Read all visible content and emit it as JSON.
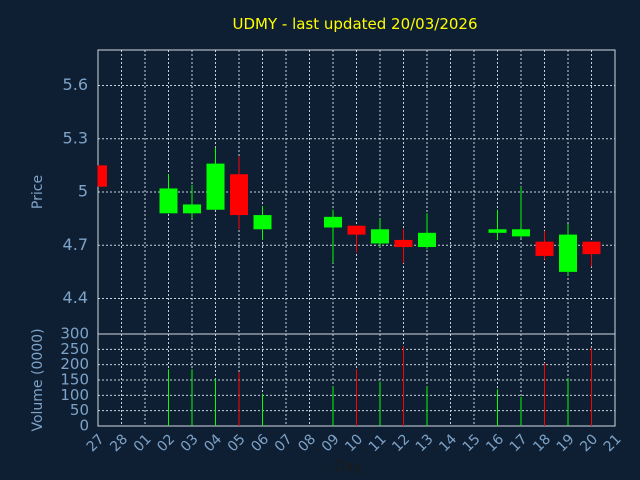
{
  "chart_data": {
    "type": "candlestick",
    "title": "UDMY - last updated 20/03/2026",
    "price_panel": {
      "ylabel": "Price",
      "ylim": [
        4.2,
        5.8
      ],
      "yticks": [
        "4.4",
        "4.7",
        "5",
        "5.3",
        "5.6"
      ],
      "ytick_values": [
        4.4,
        4.7,
        5.0,
        5.3,
        5.6
      ]
    },
    "volume_panel": {
      "ylabel": "Volume (0000)",
      "ylim": [
        0,
        300
      ],
      "yticks": [
        "0",
        "50",
        "100",
        "150",
        "200",
        "250",
        "300"
      ],
      "ytick_values": [
        0,
        50,
        100,
        150,
        200,
        250,
        300
      ]
    },
    "xlabel": "Day",
    "x_ticks": [
      "27",
      "28",
      "01",
      "02",
      "03",
      "04",
      "05",
      "06",
      "07",
      "08",
      "09",
      "10",
      "11",
      "12",
      "13",
      "14",
      "15",
      "16",
      "17",
      "18",
      "19",
      "20",
      "21"
    ],
    "grid": true,
    "colors": {
      "up": "#00ff00",
      "down": "#ff0000",
      "background": "#0f1f33",
      "title": "#ffff00",
      "axis_text": "#7ea3c8"
    },
    "candles": [
      {
        "day": "27",
        "open": 5.15,
        "high": 5.15,
        "low": 5.03,
        "close": 5.03,
        "volume": 0
      },
      {
        "day": "02",
        "open": 4.88,
        "high": 5.1,
        "low": 4.88,
        "close": 5.02,
        "volume": 185
      },
      {
        "day": "03",
        "open": 4.88,
        "high": 5.04,
        "low": 4.85,
        "close": 4.93,
        "volume": 185
      },
      {
        "day": "04",
        "open": 4.9,
        "high": 5.25,
        "low": 4.9,
        "close": 5.16,
        "volume": 155
      },
      {
        "day": "05",
        "open": 5.1,
        "high": 5.2,
        "low": 4.79,
        "close": 4.87,
        "volume": 175
      },
      {
        "day": "06",
        "open": 4.79,
        "high": 4.92,
        "low": 4.73,
        "close": 4.87,
        "volume": 105
      },
      {
        "day": "09",
        "open": 4.8,
        "high": 4.9,
        "low": 4.6,
        "close": 4.86,
        "volume": 130
      },
      {
        "day": "10",
        "open": 4.81,
        "high": 4.81,
        "low": 4.66,
        "close": 4.76,
        "volume": 185
      },
      {
        "day": "11",
        "open": 4.71,
        "high": 4.85,
        "low": 4.69,
        "close": 4.79,
        "volume": 145
      },
      {
        "day": "12",
        "open": 4.73,
        "high": 4.79,
        "low": 4.6,
        "close": 4.69,
        "volume": 260
      },
      {
        "day": "13",
        "open": 4.69,
        "high": 4.88,
        "low": 4.68,
        "close": 4.77,
        "volume": 130
      },
      {
        "day": "16",
        "open": 4.77,
        "high": 4.9,
        "low": 4.73,
        "close": 4.79,
        "volume": 120
      },
      {
        "day": "17",
        "open": 4.75,
        "high": 5.03,
        "low": 4.74,
        "close": 4.79,
        "volume": 95
      },
      {
        "day": "18",
        "open": 4.72,
        "high": 4.78,
        "low": 4.62,
        "close": 4.64,
        "volume": 205
      },
      {
        "day": "19",
        "open": 4.55,
        "high": 4.82,
        "low": 4.53,
        "close": 4.76,
        "volume": 155
      },
      {
        "day": "20",
        "open": 4.72,
        "high": 4.72,
        "low": 4.58,
        "close": 4.65,
        "volume": 255
      }
    ]
  }
}
